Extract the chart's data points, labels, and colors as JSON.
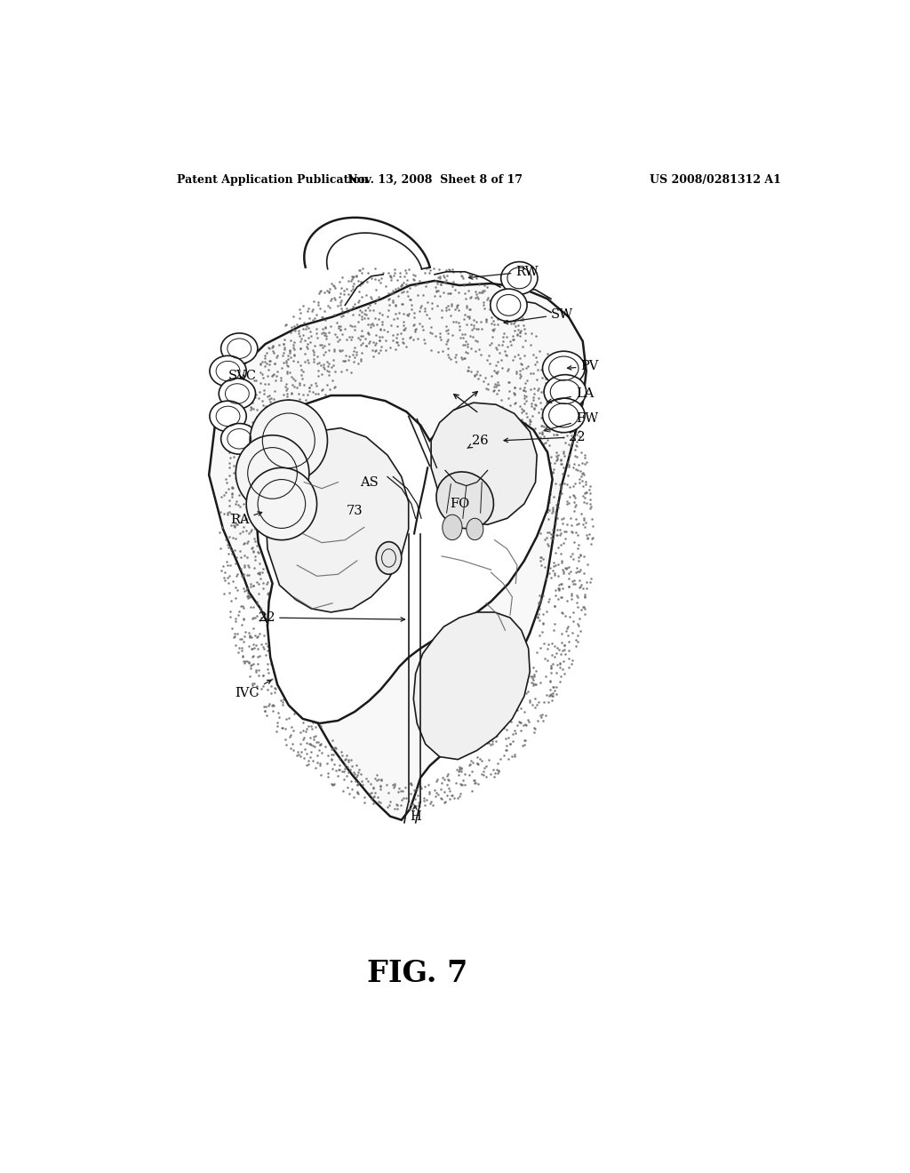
{
  "background_color": "#ffffff",
  "header_left": "Patent Application Publication",
  "header_mid": "Nov. 13, 2008  Sheet 8 of 17",
  "header_right": "US 2008/0281312 A1",
  "figure_label": "FIG. 7",
  "color_line": "#1a1a1a",
  "lw_main": 1.8,
  "lw_thin": 1.2
}
